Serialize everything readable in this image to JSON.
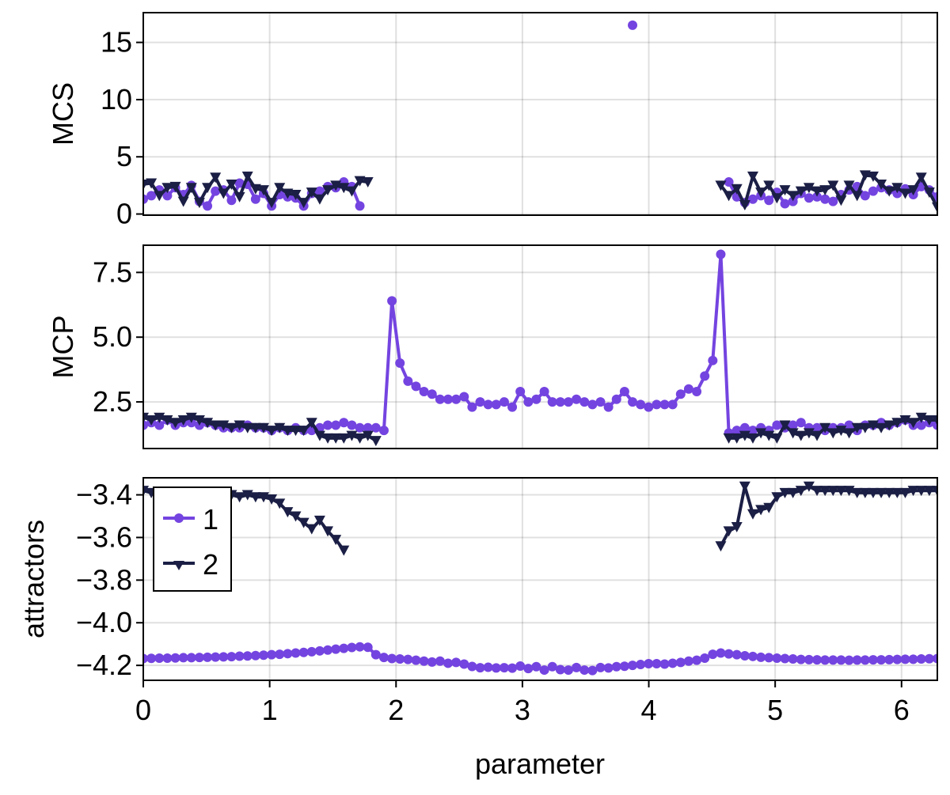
{
  "figure": {
    "xlabel": "parameter",
    "legend": [
      {
        "label": "1",
        "color": "#7444e0",
        "marker": "circle"
      },
      {
        "label": "2",
        "color": "#1b1f45",
        "marker": "triangle-down"
      }
    ]
  },
  "chart_data": [
    {
      "type": "line",
      "title": "",
      "ylabel": "MCS",
      "xlabel": "",
      "xlim": [
        0,
        6.2832
      ],
      "ylim": [
        -0.1,
        17.6
      ],
      "yticks": [
        0,
        5,
        10,
        15
      ],
      "ytick_labels": [
        "0",
        "5",
        "10",
        "15"
      ],
      "xticks": [
        0,
        1,
        2,
        3,
        4,
        5,
        6
      ],
      "grid": true,
      "x": "100 evenly spaced values from 0 to 6.2832",
      "series": [
        {
          "name": "1",
          "values": [
            1.3,
            1.6,
            2.1,
            1.6,
            2.3,
            1.7,
            2.5,
            1.1,
            0.7,
            2.0,
            2.1,
            1.2,
            2.7,
            2.6,
            1.3,
            1.8,
            0.7,
            1.7,
            1.5,
            1.4,
            0.7,
            1.8,
            2.0,
            2.4,
            2.3,
            2.8,
            2.4,
            0.7,
            null,
            null,
            null,
            null,
            null,
            null,
            null,
            null,
            null,
            null,
            null,
            null,
            null,
            null,
            null,
            null,
            null,
            null,
            null,
            null,
            null,
            null,
            null,
            null,
            null,
            null,
            null,
            null,
            null,
            null,
            null,
            null,
            null,
            16.5,
            null,
            null,
            null,
            null,
            null,
            null,
            null,
            null,
            null,
            null,
            null,
            2.8,
            1.5,
            1.0,
            1.3,
            1.6,
            1.2,
            1.9,
            0.9,
            1.1,
            1.8,
            1.4,
            1.5,
            1.3,
            1.1,
            1.7,
            2.1,
            2.4,
            1.6,
            2.0,
            2.3,
            2.1,
            1.8,
            2.2,
            1.7,
            2.4,
            2.1,
            1.5
          ]
        },
        {
          "name": "2",
          "values": [
            2.6,
            2.7,
            1.6,
            2.3,
            2.4,
            1.1,
            2.3,
            1.0,
            2.3,
            3.2,
            1.8,
            2.6,
            1.5,
            3.3,
            2.2,
            2.1,
            1.0,
            2.3,
            1.8,
            1.7,
            1.0,
            1.9,
            1.3,
            2.1,
            2.5,
            2.3,
            2.0,
            2.9,
            2.8,
            null,
            null,
            null,
            null,
            null,
            null,
            null,
            null,
            null,
            null,
            null,
            null,
            null,
            null,
            null,
            null,
            null,
            null,
            null,
            null,
            null,
            null,
            null,
            null,
            null,
            null,
            null,
            null,
            null,
            null,
            null,
            null,
            null,
            null,
            null,
            null,
            null,
            null,
            null,
            null,
            null,
            null,
            null,
            2.5,
            1.6,
            2.2,
            0.8,
            3.3,
            1.9,
            2.5,
            1.4,
            2.1,
            1.6,
            2.0,
            2.3,
            2.0,
            2.1,
            2.5,
            1.2,
            2.5,
            1.6,
            3.4,
            3.3,
            2.6,
            2.0,
            2.3,
            1.8,
            2.1,
            3.2,
            1.9,
            0.6
          ]
        }
      ]
    },
    {
      "type": "line",
      "title": "",
      "ylabel": "MCP",
      "xlabel": "",
      "xlim": [
        0,
        6.2832
      ],
      "ylim": [
        0.7,
        8.55
      ],
      "yticks": [
        2.5,
        5.0,
        7.5
      ],
      "ytick_labels": [
        "2.5",
        "5.0",
        "7.5"
      ],
      "xticks": [
        0,
        1,
        2,
        3,
        4,
        5,
        6
      ],
      "grid": true,
      "x": "100 evenly spaced values from 0 to 6.2832",
      "series": [
        {
          "name": "1",
          "values": [
            1.6,
            1.7,
            1.6,
            1.8,
            1.6,
            1.7,
            1.7,
            1.6,
            1.7,
            1.6,
            1.5,
            1.5,
            1.5,
            1.6,
            1.5,
            1.5,
            1.4,
            1.5,
            1.4,
            1.5,
            1.4,
            1.4,
            1.5,
            1.6,
            1.6,
            1.7,
            1.6,
            1.5,
            1.5,
            1.5,
            1.4,
            6.4,
            4.0,
            3.3,
            3.1,
            2.9,
            2.8,
            2.6,
            2.6,
            2.6,
            2.7,
            2.3,
            2.5,
            2.4,
            2.4,
            2.5,
            2.3,
            2.9,
            2.5,
            2.6,
            2.9,
            2.5,
            2.5,
            2.5,
            2.6,
            2.5,
            2.4,
            2.5,
            2.3,
            2.6,
            2.9,
            2.5,
            2.4,
            2.3,
            2.4,
            2.4,
            2.4,
            2.8,
            3.0,
            2.9,
            3.5,
            4.1,
            8.2,
            1.3,
            1.4,
            1.5,
            1.4,
            1.5,
            1.4,
            1.6,
            1.5,
            1.6,
            1.7,
            1.5,
            1.5,
            1.4,
            1.5,
            1.5,
            1.6,
            1.4,
            1.6,
            1.6,
            1.7,
            1.6,
            1.7,
            1.8,
            1.6,
            1.6,
            1.7,
            1.6
          ]
        },
        {
          "name": "2",
          "values": [
            1.9,
            1.8,
            1.9,
            1.8,
            1.7,
            1.8,
            1.9,
            1.8,
            1.7,
            1.6,
            1.6,
            1.5,
            1.6,
            1.5,
            1.5,
            1.5,
            1.4,
            1.5,
            1.4,
            1.4,
            1.4,
            1.7,
            1.2,
            1.1,
            1.1,
            1.1,
            1.2,
            1.1,
            1.2,
            1.0,
            null,
            null,
            null,
            null,
            null,
            null,
            null,
            null,
            null,
            null,
            null,
            null,
            null,
            null,
            null,
            null,
            null,
            null,
            null,
            null,
            null,
            null,
            null,
            null,
            null,
            null,
            null,
            null,
            null,
            null,
            null,
            null,
            null,
            null,
            null,
            null,
            null,
            null,
            null,
            null,
            null,
            null,
            null,
            1.1,
            1.1,
            1.2,
            1.1,
            1.3,
            1.2,
            1.1,
            1.6,
            1.3,
            1.2,
            1.3,
            1.2,
            1.5,
            1.3,
            1.4,
            1.3,
            1.5,
            1.5,
            1.6,
            1.5,
            1.6,
            1.7,
            1.8,
            1.7,
            1.9,
            1.8,
            1.8
          ]
        }
      ]
    },
    {
      "type": "line",
      "title": "",
      "ylabel": "attractors",
      "xlabel": "parameter",
      "xlim": [
        0,
        6.2832
      ],
      "ylim": [
        -4.27,
        -3.32
      ],
      "yticks": [
        -4.2,
        -4.0,
        -3.8,
        -3.6,
        -3.4
      ],
      "ytick_labels": [
        "−4.2",
        "−4.0",
        "−3.8",
        "−3.6",
        "−3.4"
      ],
      "xticks": [
        0,
        1,
        2,
        3,
        4,
        5,
        6
      ],
      "xtick_labels": [
        "0",
        "1",
        "2",
        "3",
        "4",
        "5",
        "6"
      ],
      "grid": true,
      "legend_position": "upper left",
      "x": "100 evenly spaced values from 0 to 6.2832",
      "series": [
        {
          "name": "1",
          "values": [
            -4.168,
            -4.167,
            -4.166,
            -4.166,
            -4.165,
            -4.164,
            -4.164,
            -4.163,
            -4.162,
            -4.161,
            -4.16,
            -4.159,
            -4.157,
            -4.156,
            -4.154,
            -4.152,
            -4.15,
            -4.148,
            -4.145,
            -4.142,
            -4.139,
            -4.136,
            -4.132,
            -4.128,
            -4.124,
            -4.12,
            -4.116,
            -4.113,
            -4.115,
            -4.15,
            -4.163,
            -4.168,
            -4.17,
            -4.172,
            -4.176,
            -4.18,
            -4.184,
            -4.18,
            -4.19,
            -4.186,
            -4.194,
            -4.205,
            -4.211,
            -4.209,
            -4.212,
            -4.211,
            -4.213,
            -4.203,
            -4.215,
            -4.206,
            -4.222,
            -4.206,
            -4.22,
            -4.222,
            -4.21,
            -4.222,
            -4.224,
            -4.21,
            -4.212,
            -4.206,
            -4.204,
            -4.2,
            -4.196,
            -4.192,
            -4.192,
            -4.194,
            -4.19,
            -4.186,
            -4.18,
            -4.176,
            -4.166,
            -4.148,
            -4.142,
            -4.146,
            -4.15,
            -4.155,
            -4.158,
            -4.162,
            -4.164,
            -4.166,
            -4.168,
            -4.17,
            -4.172,
            -4.173,
            -4.174,
            -4.175,
            -4.175,
            -4.175,
            -4.176,
            -4.175,
            -4.175,
            -4.174,
            -4.174,
            -4.173,
            -4.172,
            -4.171,
            -4.171,
            -4.17,
            -4.169,
            -4.168
          ]
        },
        {
          "name": "2",
          "values": [
            -3.38,
            -3.39,
            -3.39,
            -3.39,
            -3.39,
            -3.4,
            -3.4,
            -3.4,
            -3.4,
            -3.4,
            -3.4,
            -3.4,
            -3.41,
            -3.4,
            -3.41,
            -3.41,
            -3.42,
            -3.44,
            -3.48,
            -3.5,
            -3.53,
            -3.56,
            -3.52,
            -3.57,
            -3.61,
            -3.66,
            null,
            null,
            null,
            null,
            null,
            null,
            null,
            null,
            null,
            null,
            null,
            null,
            null,
            null,
            null,
            null,
            null,
            null,
            null,
            null,
            null,
            null,
            null,
            null,
            null,
            null,
            null,
            null,
            null,
            null,
            null,
            null,
            null,
            null,
            null,
            null,
            null,
            null,
            null,
            null,
            null,
            null,
            null,
            null,
            null,
            null,
            -3.64,
            -3.57,
            -3.55,
            -3.36,
            -3.49,
            -3.47,
            -3.46,
            -3.41,
            -3.39,
            -3.39,
            -3.38,
            -3.36,
            -3.38,
            -3.38,
            -3.38,
            -3.38,
            -3.38,
            -3.39,
            -3.39,
            -3.39,
            -3.39,
            -3.39,
            -3.39,
            -3.39,
            -3.38,
            -3.38,
            -3.38,
            -3.38,
            -3.38,
            -3.38
          ]
        }
      ]
    }
  ]
}
